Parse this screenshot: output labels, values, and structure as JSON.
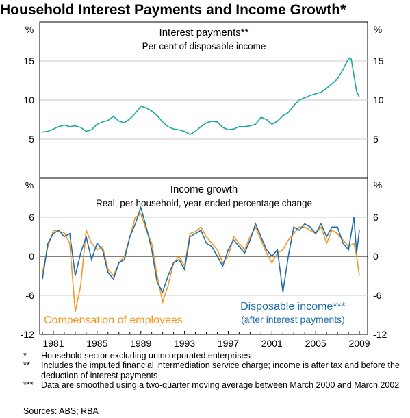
{
  "title": "Household Interest Payments and Income Growth*",
  "chart_data": [
    {
      "type": "line",
      "title": "Interest payments**",
      "subtitle": "Per cent of disposable income",
      "ylabel_left": "%",
      "ylabel_right": "%",
      "ylim": [
        0,
        20
      ],
      "yticks": [
        5,
        10,
        15
      ],
      "xlim": [
        1979.75,
        2009.75
      ],
      "series": [
        {
          "color": "#1aa89c",
          "x": [
            1980.0,
            1980.5,
            1981.0,
            1981.5,
            1982.0,
            1982.5,
            1983.0,
            1983.5,
            1984.0,
            1984.5,
            1985.0,
            1985.5,
            1986.0,
            1986.5,
            1987.0,
            1987.5,
            1988.0,
            1988.5,
            1989.0,
            1989.5,
            1990.0,
            1990.5,
            1991.0,
            1991.5,
            1992.0,
            1992.5,
            1993.0,
            1993.5,
            1994.0,
            1994.5,
            1995.0,
            1995.5,
            1996.0,
            1996.5,
            1997.0,
            1997.5,
            1998.0,
            1998.5,
            1999.0,
            1999.5,
            2000.0,
            2000.5,
            2001.0,
            2001.5,
            2002.0,
            2002.5,
            2003.0,
            2003.5,
            2004.0,
            2004.5,
            2005.0,
            2005.5,
            2006.0,
            2006.5,
            2007.0,
            2007.5,
            2008.0,
            2008.25,
            2008.5,
            2008.75,
            2009.0
          ],
          "values": [
            5.9,
            6.0,
            6.3,
            6.6,
            6.8,
            6.6,
            6.7,
            6.5,
            6.0,
            6.2,
            6.9,
            7.2,
            7.4,
            7.9,
            7.3,
            7.1,
            7.6,
            8.3,
            9.2,
            9.0,
            8.6,
            8.0,
            7.2,
            6.6,
            6.3,
            6.2,
            6.0,
            5.6,
            6.0,
            6.6,
            7.1,
            7.3,
            7.2,
            6.5,
            6.2,
            6.3,
            6.6,
            6.6,
            6.7,
            6.9,
            7.8,
            7.5,
            6.9,
            7.3,
            8.0,
            8.4,
            9.3,
            10.0,
            10.3,
            10.6,
            10.8,
            11.0,
            11.5,
            12.1,
            12.7,
            13.9,
            15.3,
            15.3,
            13.2,
            11.1,
            10.4
          ]
        }
      ]
    },
    {
      "type": "line",
      "title": "Income growth",
      "subtitle": "Real, per household, year-ended percentage change",
      "ylabel_left": "%",
      "ylabel_right": "%",
      "ylim": [
        -12,
        12
      ],
      "yticks": [
        -12,
        -6,
        0,
        6
      ],
      "xlim": [
        1979.75,
        2009.75
      ],
      "xticks": [
        1981,
        1985,
        1989,
        1993,
        1997,
        2001,
        2005,
        2009
      ],
      "series": [
        {
          "name": "Compensation of employees",
          "color": "#f5961e",
          "x": [
            1980.0,
            1980.5,
            1981.0,
            1981.5,
            1982.0,
            1982.5,
            1983.0,
            1983.5,
            1984.0,
            1984.5,
            1985.0,
            1985.5,
            1986.0,
            1986.5,
            1987.0,
            1987.5,
            1988.0,
            1988.5,
            1989.0,
            1989.5,
            1990.0,
            1990.5,
            1991.0,
            1991.5,
            1992.0,
            1992.5,
            1993.0,
            1993.5,
            1994.0,
            1994.5,
            1995.0,
            1995.5,
            1996.0,
            1996.5,
            1997.0,
            1997.5,
            1998.0,
            1998.5,
            1999.0,
            1999.5,
            2000.0,
            2000.5,
            2001.0,
            2001.5,
            2002.0,
            2002.5,
            2003.0,
            2003.5,
            2004.0,
            2004.5,
            2005.0,
            2005.5,
            2006.0,
            2006.5,
            2007.0,
            2007.5,
            2008.0,
            2008.5,
            2008.75,
            2009.0
          ],
          "values": [
            -2.5,
            1.5,
            4.0,
            3.8,
            3.6,
            2.0,
            -8.5,
            -4.5,
            4.0,
            2.0,
            1.0,
            1.5,
            -2.0,
            -3.0,
            -1.0,
            0.0,
            3.0,
            6.0,
            6.5,
            4.0,
            2.0,
            -3.0,
            -7.0,
            -4.5,
            -1.0,
            0.0,
            -1.5,
            3.5,
            3.8,
            4.5,
            3.0,
            2.0,
            1.0,
            -1.0,
            0.0,
            3.0,
            2.0,
            1.0,
            3.0,
            4.5,
            2.5,
            0.5,
            -1.0,
            0.5,
            1.0,
            2.5,
            3.5,
            4.5,
            4.5,
            4.0,
            3.5,
            4.5,
            2.0,
            4.0,
            3.5,
            2.5,
            1.5,
            2.0,
            0.0,
            -3.0
          ]
        },
        {
          "name": "Disposable income***",
          "label_note": "(after interest payments)",
          "color": "#1e6eaa",
          "x": [
            1980.0,
            1980.5,
            1981.0,
            1981.5,
            1982.0,
            1982.5,
            1983.0,
            1983.5,
            1984.0,
            1984.5,
            1985.0,
            1985.5,
            1986.0,
            1986.5,
            1987.0,
            1987.5,
            1988.0,
            1988.5,
            1989.0,
            1989.5,
            1990.0,
            1990.5,
            1991.0,
            1991.5,
            1992.0,
            1992.5,
            1993.0,
            1993.5,
            1994.0,
            1994.5,
            1995.0,
            1995.5,
            1996.0,
            1996.5,
            1997.0,
            1997.5,
            1998.0,
            1998.5,
            1999.0,
            1999.5,
            2000.0,
            2000.5,
            2001.0,
            2001.5,
            2002.0,
            2002.5,
            2003.0,
            2003.5,
            2004.0,
            2004.5,
            2005.0,
            2005.5,
            2006.0,
            2006.5,
            2007.0,
            2007.5,
            2008.0,
            2008.5,
            2008.75,
            2009.0
          ],
          "values": [
            -3.5,
            2.0,
            3.5,
            4.0,
            3.0,
            3.5,
            -3.0,
            0.5,
            3.0,
            -0.5,
            2.0,
            1.0,
            -2.5,
            -3.5,
            -1.0,
            -0.5,
            3.0,
            5.0,
            7.5,
            4.5,
            1.0,
            -4.0,
            -5.5,
            -3.0,
            -1.0,
            -0.5,
            -2.0,
            3.0,
            3.5,
            4.0,
            2.0,
            1.5,
            0.0,
            -1.5,
            1.0,
            2.5,
            1.5,
            0.5,
            2.5,
            5.0,
            3.0,
            1.0,
            0.0,
            1.0,
            -5.5,
            0.0,
            4.5,
            4.0,
            5.0,
            4.5,
            3.5,
            5.0,
            3.0,
            4.5,
            4.5,
            2.0,
            1.0,
            6.0,
            0.5,
            4.0
          ]
        }
      ]
    }
  ],
  "footnotes": [
    {
      "mark": "*",
      "text": "Household sector excluding unincorporated enterprises"
    },
    {
      "mark": "**",
      "text": "Includes the imputed financial intermediation service charge; income is after tax and before the deduction of interest payments"
    },
    {
      "mark": "***",
      "text": "Data are smoothed using a two-quarter moving average between March 2000 and March 2002"
    }
  ],
  "sources": "Sources: ABS; RBA"
}
